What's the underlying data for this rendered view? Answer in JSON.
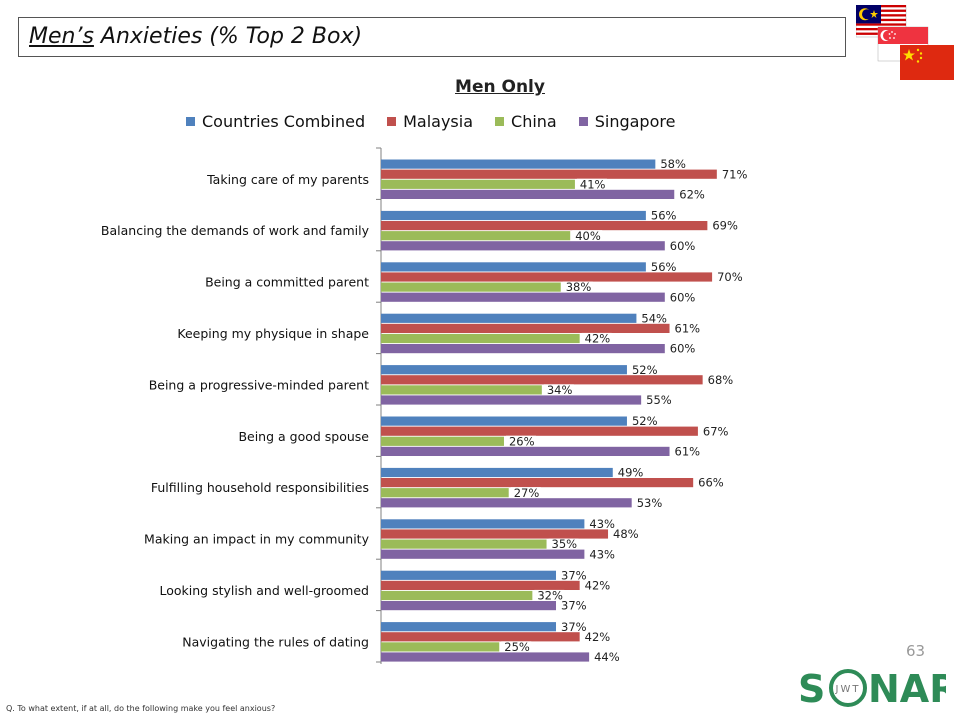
{
  "header": {
    "title_underlined": "Men’s",
    "title_rest": " Anxieties (% Top 2 Box)"
  },
  "flags": [
    {
      "name": "malaysia-flag-icon"
    },
    {
      "name": "singapore-flag-icon"
    },
    {
      "name": "china-flag-icon"
    }
  ],
  "page_number": "63",
  "footnote": "Q. To what extent, if at all, do the following make you feel anxious?",
  "logo": {
    "text_s": "S",
    "text_nar": "NAR",
    "inner": "JWT",
    "color": "#2e8b57"
  },
  "chart_data": {
    "type": "bar",
    "orientation": "horizontal",
    "title": "Men Only",
    "legend_position": "top",
    "xlim": [
      0,
      100
    ],
    "grid": false,
    "label_suffix": "%",
    "categories": [
      "Taking care of my parents",
      "Balancing the demands of work and family",
      "Being a committed parent",
      "Keeping my physique in shape",
      "Being a progressive-minded parent",
      "Being a good spouse",
      "Fulfilling household responsibilities",
      "Making an impact in my community",
      "Looking stylish and well-groomed",
      "Navigating the rules of dating"
    ],
    "series": [
      {
        "name": "Countries Combined",
        "color": "#4f81bd",
        "values": [
          58,
          56,
          56,
          54,
          52,
          52,
          49,
          43,
          37,
          37
        ]
      },
      {
        "name": "Malaysia",
        "color": "#c0504d",
        "values": [
          71,
          69,
          70,
          61,
          68,
          67,
          66,
          48,
          42,
          42
        ]
      },
      {
        "name": "China",
        "color": "#9bbb59",
        "values": [
          41,
          40,
          38,
          42,
          34,
          26,
          27,
          35,
          32,
          25
        ]
      },
      {
        "name": "Singapore",
        "color": "#8064a2",
        "values": [
          62,
          60,
          60,
          60,
          55,
          61,
          53,
          43,
          37,
          44
        ]
      }
    ]
  }
}
